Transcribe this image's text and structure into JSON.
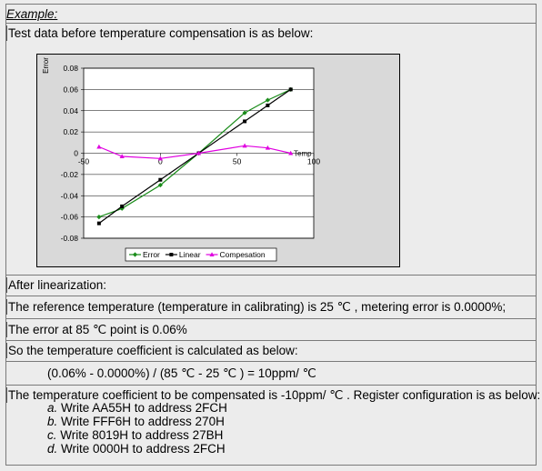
{
  "heading": "Example:",
  "intro": "Test data before temperature compensation is as below:",
  "chart_data": {
    "type": "line",
    "ylabel": "Error",
    "xlabel": "Temp",
    "xlim": [
      -50,
      100
    ],
    "ylim": [
      -0.08,
      0.08
    ],
    "x_ticks": [
      "-50",
      "0",
      "50",
      "100"
    ],
    "y_ticks": [
      "0.08",
      "0.06",
      "0.04",
      "0.02",
      "0",
      "-0.02",
      "-0.04",
      "-0.06",
      "-0.08"
    ],
    "legend_position": "bottom",
    "grid": "horizontal",
    "series": [
      {
        "name": "Error",
        "color": "#1a8c1a",
        "marker": "diamond",
        "points": [
          [
            -40,
            -0.06
          ],
          [
            -25,
            -0.052
          ],
          [
            0,
            -0.03
          ],
          [
            25,
            0.0
          ],
          [
            55,
            0.038
          ],
          [
            70,
            0.05
          ],
          [
            85,
            0.06
          ]
        ]
      },
      {
        "name": "Linear",
        "color": "#000000",
        "marker": "square",
        "points": [
          [
            -40,
            -0.066
          ],
          [
            -25,
            -0.05
          ],
          [
            0,
            -0.025
          ],
          [
            25,
            0.0
          ],
          [
            55,
            0.03
          ],
          [
            70,
            0.045
          ],
          [
            85,
            0.06
          ]
        ]
      },
      {
        "name": "Compesation",
        "color": "#e000e0",
        "marker": "triangle",
        "points": [
          [
            -40,
            0.006
          ],
          [
            -25,
            -0.003
          ],
          [
            0,
            -0.005
          ],
          [
            25,
            0.0
          ],
          [
            55,
            0.007
          ],
          [
            70,
            0.005
          ],
          [
            85,
            0.0
          ]
        ]
      }
    ]
  },
  "after": "After linearization:",
  "line1": "The reference temperature (temperature in calibrating) is 25 ℃ , metering error is 0.0000%;",
  "line2": "The error at 85 ℃ point is 0.06%",
  "line3": "So the temperature coefficient is calculated as below:",
  "formula": "(0.06% - 0.0000%) / (85 ℃ - 25 ℃ ) = 10ppm/ ℃",
  "line4": "The temperature coefficient to be compensated is -10ppm/ ℃ . Register configuration is as below:",
  "steps": [
    {
      "letter": "a.",
      "text": " Write AA55H to address 2FCH"
    },
    {
      "letter": "b.",
      "text": " Write FFF6H to address 270H"
    },
    {
      "letter": "c.",
      "text": " Write 8019H to address 27BH"
    },
    {
      "letter": "d.",
      "text": " Write 0000H to address 2FCH"
    }
  ]
}
